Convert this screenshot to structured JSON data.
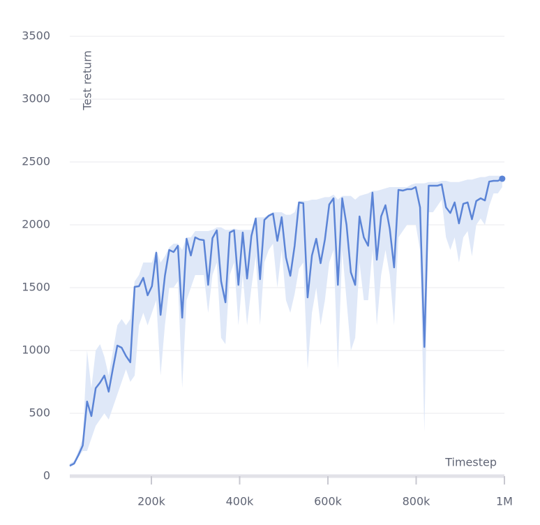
{
  "chart_data": {
    "type": "line",
    "y_label": "Test return",
    "x_label": "Timestep",
    "xlim": [
      15000,
      1000000
    ],
    "xticks": [
      {
        "value": 200000,
        "label": "200k"
      },
      {
        "value": 400000,
        "label": "400k"
      },
      {
        "value": 600000,
        "label": "600k"
      },
      {
        "value": 800000,
        "label": "800k"
      },
      {
        "value": 1000000,
        "label": "1M"
      }
    ],
    "ylim": [
      0,
      3500
    ],
    "yticks": [
      0,
      500,
      1000,
      1500,
      2000,
      2500,
      3000,
      3500
    ],
    "grid": true,
    "x": [
      15000,
      24800,
      34600,
      44400,
      54200,
      64000,
      73800,
      83600,
      93400,
      103200,
      113000,
      122800,
      132600,
      142400,
      152200,
      162000,
      171800,
      181600,
      191400,
      201200,
      211000,
      220800,
      230600,
      240400,
      250200,
      260000,
      269800,
      279600,
      289400,
      299200,
      309000,
      318800,
      328600,
      338400,
      348200,
      358000,
      367800,
      377600,
      387400,
      397200,
      407000,
      416800,
      426600,
      436400,
      446200,
      456000,
      465800,
      475600,
      485400,
      495200,
      505000,
      514800,
      524600,
      534400,
      544200,
      554000,
      563800,
      573600,
      583400,
      593200,
      603000,
      612800,
      622600,
      632400,
      642200,
      652000,
      661800,
      671600,
      681400,
      691200,
      701000,
      710800,
      720600,
      730400,
      740200,
      750000,
      759800,
      769600,
      779400,
      789200,
      799000,
      808800,
      818600,
      828400,
      838200,
      848000,
      857800,
      867600,
      877400,
      887200,
      897000,
      906800,
      916600,
      926400,
      936200,
      946000,
      955800,
      965600,
      975400,
      985200,
      995000
    ],
    "series": [
      {
        "color": "#5b84d6",
        "band_color": "#dfe8f8",
        "values": [
          83,
          100,
          167,
          244,
          594,
          478,
          700,
          744,
          800,
          672,
          861,
          1039,
          1022,
          956,
          906,
          1506,
          1511,
          1578,
          1439,
          1511,
          1778,
          1283,
          1594,
          1800,
          1783,
          1833,
          1261,
          1889,
          1756,
          1900,
          1883,
          1878,
          1522,
          1894,
          1956,
          1550,
          1383,
          1939,
          1956,
          1522,
          1939,
          1572,
          1911,
          2050,
          1567,
          2039,
          2072,
          2089,
          1872,
          2061,
          1739,
          1594,
          1833,
          2178,
          2172,
          1422,
          1756,
          1889,
          1694,
          1883,
          2161,
          2211,
          1522,
          2211,
          2000,
          1622,
          1522,
          2067,
          1900,
          1833,
          2256,
          1722,
          2067,
          2156,
          1967,
          1661,
          2278,
          2272,
          2283,
          2283,
          2300,
          2139,
          1028,
          2311,
          2311,
          2311,
          2322,
          2139,
          2094,
          2178,
          2011,
          2167,
          2178,
          2044,
          2189,
          2211,
          2194,
          2344,
          2350,
          2350,
          2367
        ],
        "upper": [
          100,
          120,
          200,
          300,
          1000,
          700,
          1000,
          1050,
          950,
          800,
          1000,
          1200,
          1250,
          1200,
          1250,
          1550,
          1600,
          1700,
          1700,
          1700,
          1800,
          1700,
          1750,
          1820,
          1850,
          1850,
          1800,
          1900,
          1900,
          1950,
          1950,
          1950,
          1950,
          1960,
          1980,
          1980,
          1960,
          1960,
          1970,
          1960,
          1960,
          1960,
          1960,
          2060,
          2060,
          2060,
          2080,
          2100,
          2100,
          2100,
          2080,
          2080,
          2100,
          2190,
          2190,
          2190,
          2200,
          2200,
          2210,
          2220,
          2220,
          2240,
          2200,
          2230,
          2230,
          2230,
          2200,
          2230,
          2240,
          2250,
          2270,
          2270,
          2280,
          2290,
          2300,
          2300,
          2300,
          2300,
          2300,
          2320,
          2330,
          2330,
          2330,
          2340,
          2340,
          2340,
          2350,
          2350,
          2340,
          2340,
          2340,
          2350,
          2360,
          2360,
          2370,
          2380,
          2380,
          2390,
          2390,
          2390,
          2390
        ],
        "lower": [
          70,
          90,
          150,
          200,
          200,
          300,
          400,
          450,
          500,
          450,
          550,
          650,
          750,
          850,
          750,
          800,
          1200,
          1300,
          1200,
          1300,
          1400,
          800,
          1200,
          1500,
          1500,
          1550,
          700,
          1400,
          1500,
          1600,
          1600,
          1600,
          1300,
          1600,
          1700,
          1100,
          1050,
          1600,
          1700,
          1200,
          1600,
          1200,
          1500,
          1750,
          1200,
          1700,
          1800,
          1850,
          1500,
          1800,
          1400,
          1300,
          1450,
          1650,
          1700,
          850,
          1300,
          1500,
          1200,
          1400,
          1700,
          1800,
          850,
          1800,
          1400,
          1000,
          1100,
          1700,
          1400,
          1400,
          1800,
          1200,
          1600,
          1800,
          1600,
          1200,
          1900,
          1950,
          2000,
          2000,
          2000,
          1800,
          350,
          2100,
          2100,
          2150,
          2200,
          1900,
          1800,
          1900,
          1700,
          1900,
          1950,
          1750,
          2000,
          2050,
          2000,
          2150,
          2250,
          2250,
          2300
        ]
      }
    ]
  }
}
